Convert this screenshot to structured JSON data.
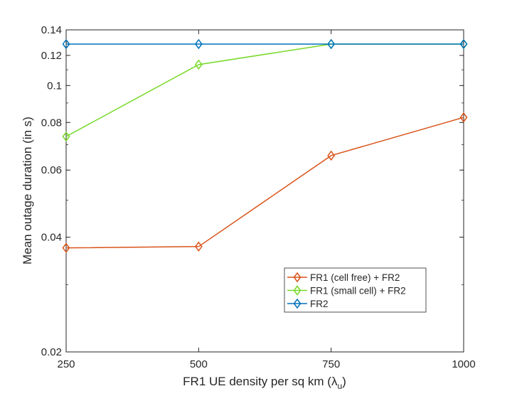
{
  "chart_data": {
    "type": "line",
    "title": "",
    "xlabel": "FR1 UE density per sq km (λ",
    "xlabel_sub": "u",
    "xlabel_close": ")",
    "ylabel": "Mean outage duration (in s)",
    "x": [
      250,
      500,
      750,
      1000
    ],
    "xlim": [
      250,
      1000
    ],
    "ylim": [
      0.02,
      0.14
    ],
    "yscale": "log",
    "x_ticks": [
      "250",
      "500",
      "750",
      "1000"
    ],
    "x_tick_values": [
      250,
      500,
      750,
      1000
    ],
    "y_ticks": [
      "0.02",
      "0.04",
      "0.06",
      "0.08",
      "0.1",
      "0.12",
      "0.14"
    ],
    "y_tick_values": [
      0.02,
      0.04,
      0.06,
      0.08,
      0.1,
      0.12,
      0.14
    ],
    "grid": false,
    "legend_position": "lower-right",
    "series": [
      {
        "name": "FR1 (cell free) + FR2",
        "values": [
          0.0375,
          0.0378,
          0.0655,
          0.0825
        ],
        "color": "#D95319",
        "marker": "diamond"
      },
      {
        "name": "FR1 (small cell) + FR2",
        "values": [
          0.0735,
          0.1135,
          0.1285,
          0.1285
        ],
        "color": "#77D927",
        "marker": "diamond"
      },
      {
        "name": "FR2",
        "values": [
          0.1285,
          0.1285,
          0.1285,
          0.1285
        ],
        "color": "#0072BD",
        "marker": "diamond"
      }
    ]
  }
}
